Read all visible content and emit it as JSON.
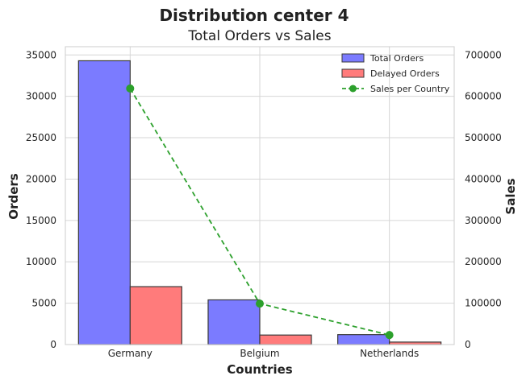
{
  "chart_data": {
    "type": "bar",
    "suptitle": "Distribution center 4",
    "title": "Total Orders vs Sales",
    "xlabel": "Countries",
    "ylabel": "Orders",
    "ylabel_right": "Sales",
    "categories": [
      "Germany",
      "Belgium",
      "Netherlands"
    ],
    "ylim": [
      0,
      36000
    ],
    "ylim_right": [
      0,
      720000
    ],
    "yticks": [
      "0",
      "5000",
      "10000",
      "15000",
      "20000",
      "25000",
      "30000",
      "35000"
    ],
    "yticks_right": [
      "0",
      "100000",
      "200000",
      "300000",
      "400000",
      "500000",
      "600000",
      "700000"
    ],
    "series": [
      {
        "name": "Total Orders",
        "type": "bar",
        "axis": "left",
        "color": "#7b7bff",
        "values": [
          34300,
          5400,
          1200
        ]
      },
      {
        "name": "Delayed Orders",
        "type": "bar",
        "axis": "left",
        "color": "#ff7b7b",
        "values": [
          7000,
          1150,
          300
        ]
      },
      {
        "name": "Sales per Country",
        "type": "line",
        "axis": "right",
        "color": "#2ca02c",
        "style": "dashed",
        "values": [
          619000,
          99000,
          23000
        ]
      }
    ],
    "grid": true,
    "legend_position": "top-right"
  }
}
